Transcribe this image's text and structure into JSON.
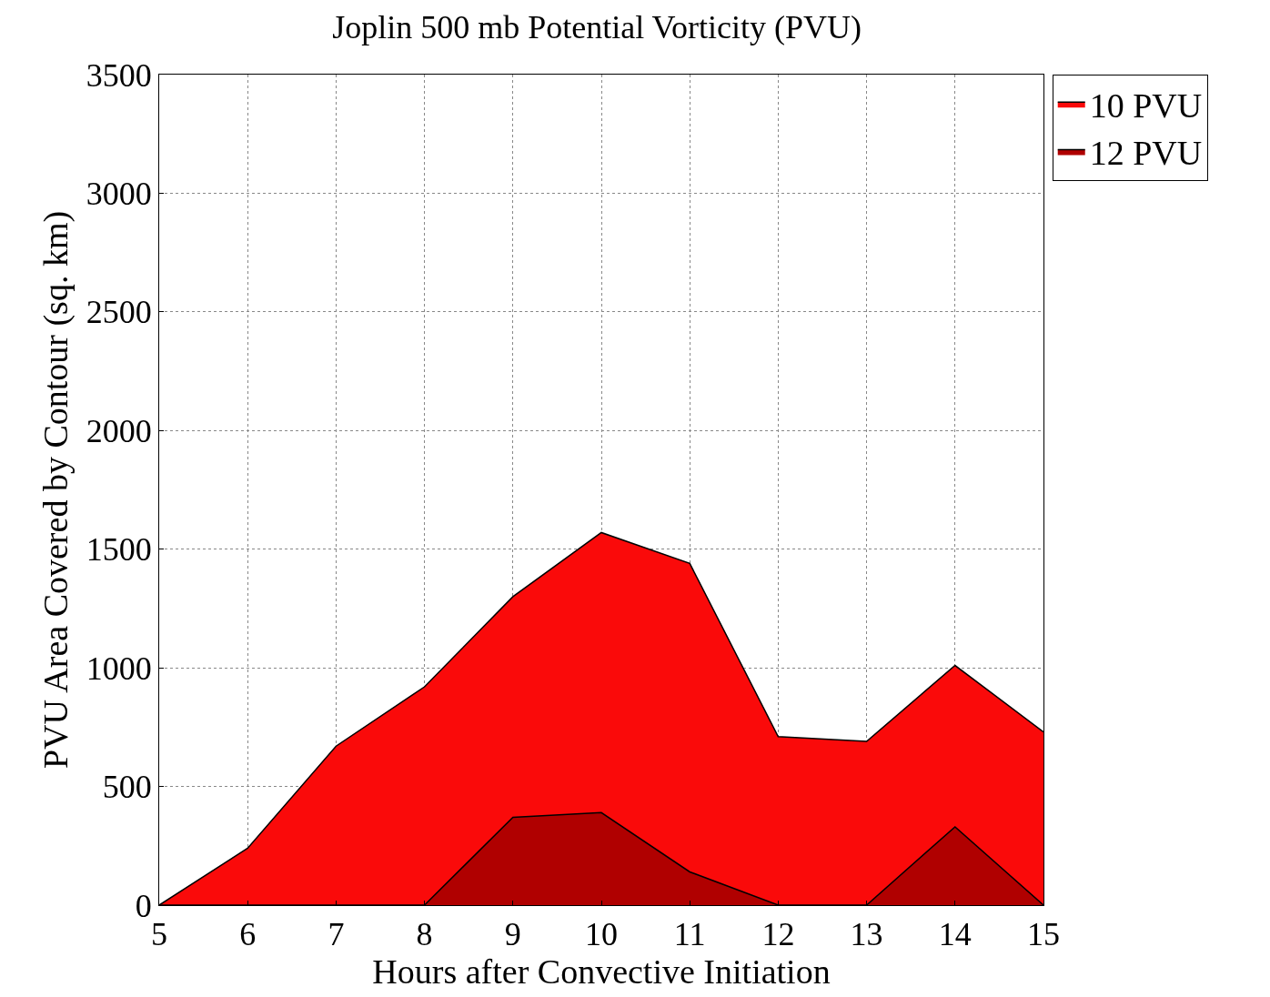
{
  "chart_data": {
    "type": "area",
    "title": "Joplin 500 mb Potential Vorticity (PVU)",
    "xlabel": "Hours after Convective Initiation",
    "ylabel": "PVU Area Covered by Contour (sq. km)",
    "x": [
      5,
      6,
      7,
      8,
      9,
      10,
      11,
      12,
      13,
      14,
      15
    ],
    "series": [
      {
        "name": "10 PVU",
        "color": "#fa0a0a",
        "values": [
          0,
          240,
          670,
          920,
          1300,
          1570,
          1440,
          710,
          690,
          1010,
          730
        ]
      },
      {
        "name": "12 PVU",
        "color": "#b00000",
        "values": [
          0,
          0,
          0,
          0,
          370,
          390,
          140,
          0,
          0,
          330,
          0
        ]
      }
    ],
    "xlim": [
      5,
      15
    ],
    "xticks": [
      5,
      6,
      7,
      8,
      9,
      10,
      11,
      12,
      13,
      14,
      15
    ],
    "ylim": [
      0,
      3500
    ],
    "yticks": [
      0,
      500,
      1000,
      1500,
      2000,
      2500,
      3000,
      3500
    ],
    "grid": true,
    "legend": "top right",
    "line_style": "solid",
    "marker": "none"
  }
}
